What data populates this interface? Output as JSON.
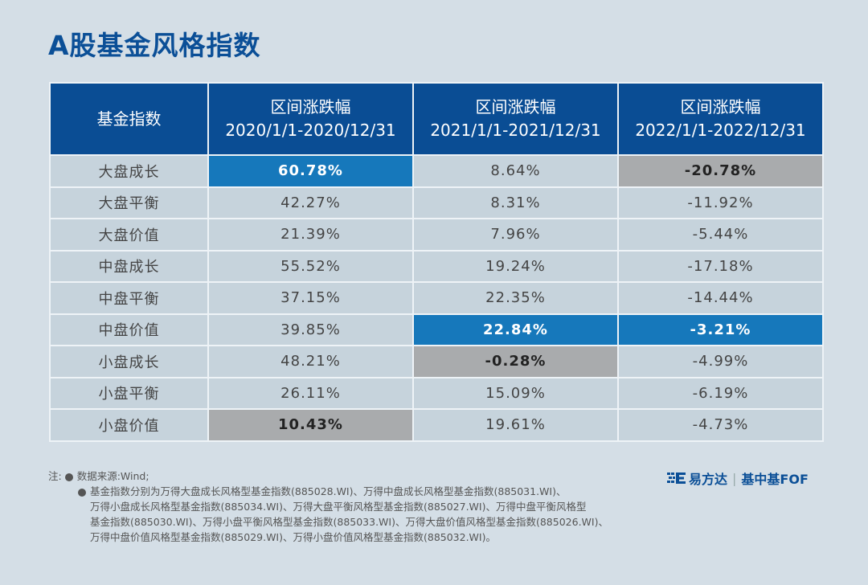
{
  "title": "A股基金风格指数",
  "table": {
    "headers": [
      {
        "line1": "基金指数",
        "line2": ""
      },
      {
        "line1": "区间涨跌幅",
        "line2": "2020/1/1-2020/12/31"
      },
      {
        "line1": "区间涨跌幅",
        "line2": "2021/1/1-2021/12/31"
      },
      {
        "line1": "区间涨跌幅",
        "line2": "2022/1/1-2022/12/31"
      }
    ],
    "rows": [
      {
        "name": "大盘成长",
        "values": [
          "60.78%",
          "8.64%",
          "-20.78%"
        ],
        "hl": [
          "blue",
          "",
          "gray"
        ]
      },
      {
        "name": "大盘平衡",
        "values": [
          "42.27%",
          "8.31%",
          "-11.92%"
        ],
        "hl": [
          "",
          "",
          ""
        ]
      },
      {
        "name": "大盘价值",
        "values": [
          "21.39%",
          "7.96%",
          "-5.44%"
        ],
        "hl": [
          "",
          "",
          ""
        ]
      },
      {
        "name": "中盘成长",
        "values": [
          "55.52%",
          "19.24%",
          "-17.18%"
        ],
        "hl": [
          "",
          "",
          ""
        ]
      },
      {
        "name": "中盘平衡",
        "values": [
          "37.15%",
          "22.35%",
          "-14.44%"
        ],
        "hl": [
          "",
          "",
          ""
        ]
      },
      {
        "name": "中盘价值",
        "values": [
          "39.85%",
          "22.84%",
          "-3.21%"
        ],
        "hl": [
          "",
          "blue",
          "blue"
        ]
      },
      {
        "name": "小盘成长",
        "values": [
          "48.21%",
          "-0.28%",
          "-4.99%"
        ],
        "hl": [
          "",
          "gray",
          ""
        ]
      },
      {
        "name": "小盘平衡",
        "values": [
          "26.11%",
          "15.09%",
          "-6.19%"
        ],
        "hl": [
          "",
          "",
          ""
        ]
      },
      {
        "name": "小盘价值",
        "values": [
          "10.43%",
          "19.61%",
          "-4.73%"
        ],
        "hl": [
          "gray",
          "",
          ""
        ]
      }
    ],
    "colors": {
      "header": "#0a4d94",
      "max": "#1678bb",
      "min": "#a9abad"
    }
  },
  "notes": {
    "label": "注:",
    "note1": "数据来源:Wind;",
    "note2_lines": [
      "基金指数分别为万得大盘成长风格型基金指数(885028.WI)、万得中盘成长风格型基金指数(885031.WI)、",
      "万得小盘成长风格型基金指数(885034.WI)、万得大盘平衡风格型基金指数(885027.WI)、万得中盘平衡风格型",
      "基金指数(885030.WI)、万得小盘平衡风格型基金指数(885033.WI)、万得大盘价值风格型基金指数(885026.WI)、",
      "万得中盘价值风格型基金指数(885029.WI)、万得小盘价值风格型基金指数(885032.WI)。"
    ]
  },
  "logo": {
    "brand": "易方达",
    "product": "基中基FOF",
    "separator": "|"
  }
}
